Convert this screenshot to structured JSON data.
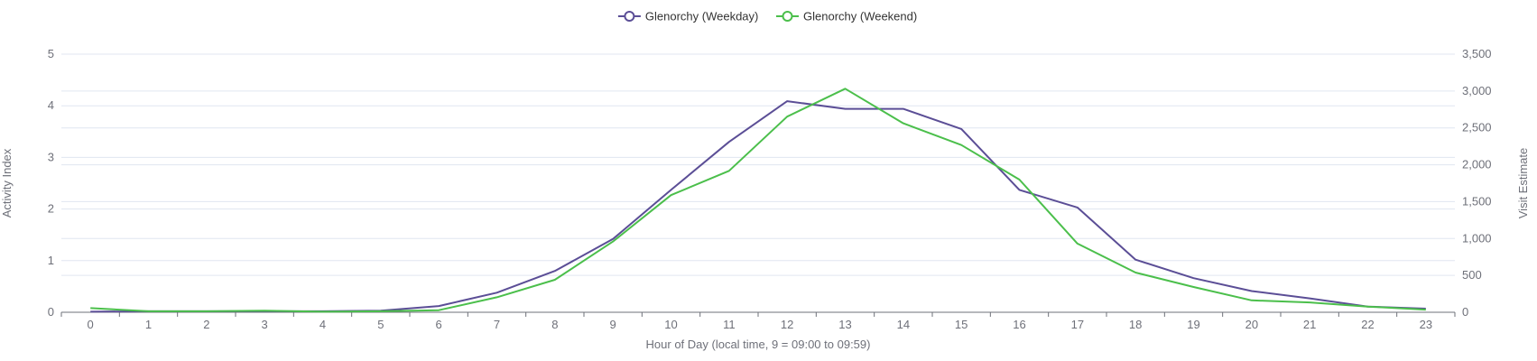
{
  "chart_data": {
    "type": "line",
    "title": "",
    "x": [
      0,
      1,
      2,
      3,
      4,
      5,
      6,
      7,
      8,
      9,
      10,
      11,
      12,
      13,
      14,
      15,
      16,
      17,
      18,
      19,
      20,
      21,
      22,
      23
    ],
    "xlabel": "Hour of Day (local time, 9 = 09:00 to 09:59)",
    "ylabel": "Activity Index",
    "y2label": "Visit Estimate",
    "ylim": [
      0,
      5
    ],
    "y2lim": [
      0,
      3500
    ],
    "yticks": [
      "0",
      "1",
      "2",
      "3",
      "4",
      "5"
    ],
    "y2ticks": [
      "0",
      "500",
      "1,000",
      "1,500",
      "2,000",
      "2,500",
      "3,000",
      "3,500"
    ],
    "legend_position": "top-center",
    "grid": true,
    "series": [
      {
        "name": "Glenorchy (Weekday)",
        "color": "#5b4e96",
        "values": [
          0.01,
          0.02,
          0.02,
          0.02,
          0.02,
          0.03,
          0.12,
          0.38,
          0.8,
          1.42,
          2.37,
          3.3,
          4.09,
          3.94,
          3.94,
          3.55,
          2.37,
          2.03,
          1.02,
          0.66,
          0.41,
          0.27,
          0.11,
          0.07
        ]
      },
      {
        "name": "Glenorchy (Weekend)",
        "color": "#4bbf4b",
        "values": [
          0.08,
          0.02,
          0.02,
          0.03,
          0.01,
          0.02,
          0.04,
          0.29,
          0.63,
          1.37,
          2.27,
          2.74,
          3.79,
          4.33,
          3.66,
          3.24,
          2.57,
          1.33,
          0.77,
          0.49,
          0.23,
          0.19,
          0.11,
          0.05
        ]
      }
    ]
  }
}
